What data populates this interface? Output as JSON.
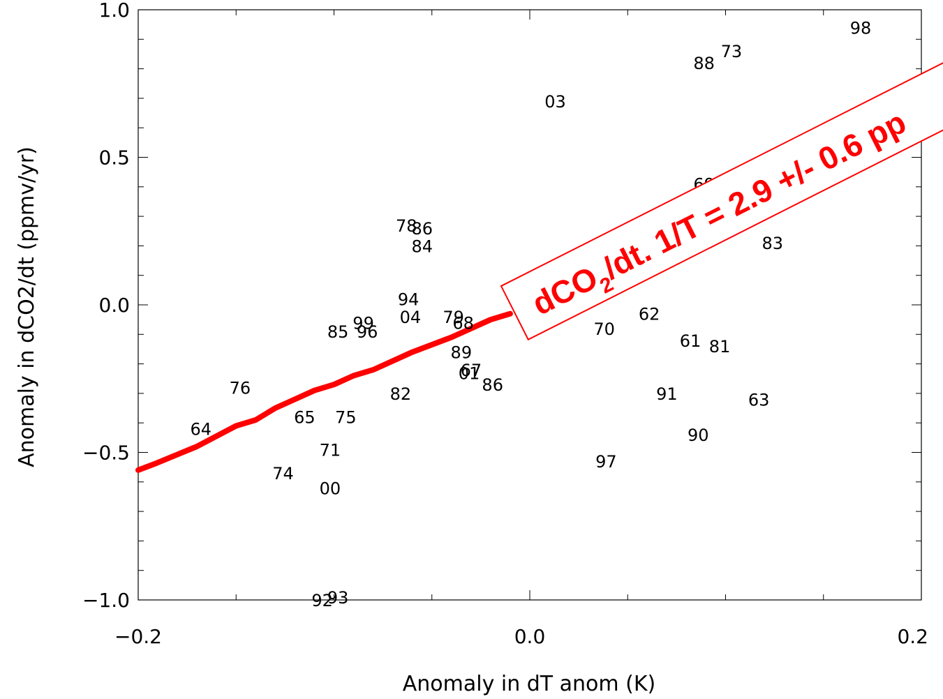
{
  "chart_data": {
    "type": "scatter",
    "xlabel": "Anomaly in dT anom (K)",
    "ylabel": "Anomaly in dCO2/dt (ppmv/yr)",
    "xlim": [
      -0.2,
      0.2
    ],
    "ylim": [
      -1.0,
      1.0
    ],
    "x_ticks": [
      "-0.2",
      "0.0",
      "0.2"
    ],
    "y_ticks": [
      "-1.0",
      "-0.5",
      "0.0",
      "0.5",
      "1.0"
    ],
    "points": [
      {
        "label": "98",
        "x": 0.169,
        "y": 0.94
      },
      {
        "label": "73",
        "x": 0.103,
        "y": 0.86
      },
      {
        "label": "88",
        "x": 0.089,
        "y": 0.82
      },
      {
        "label": "03",
        "x": 0.013,
        "y": 0.69
      },
      {
        "label": "69",
        "x": 0.089,
        "y": 0.41
      },
      {
        "label": "83",
        "x": 0.124,
        "y": 0.21
      },
      {
        "label": "78",
        "x": -0.063,
        "y": 0.27
      },
      {
        "label": "86",
        "x": -0.055,
        "y": 0.26
      },
      {
        "label": "84",
        "x": -0.055,
        "y": 0.2
      },
      {
        "label": "94",
        "x": -0.062,
        "y": 0.02
      },
      {
        "label": "04",
        "x": -0.061,
        "y": -0.04
      },
      {
        "label": "79",
        "x": -0.039,
        "y": -0.04
      },
      {
        "label": "68",
        "x": -0.034,
        "y": -0.06
      },
      {
        "label": "62",
        "x": 0.061,
        "y": -0.03
      },
      {
        "label": "70",
        "x": 0.038,
        "y": -0.08
      },
      {
        "label": "61",
        "x": 0.082,
        "y": -0.12
      },
      {
        "label": "81",
        "x": 0.097,
        "y": -0.14
      },
      {
        "label": "99",
        "x": -0.085,
        "y": -0.06
      },
      {
        "label": "85",
        "x": -0.098,
        "y": -0.09
      },
      {
        "label": "96",
        "x": -0.083,
        "y": -0.09
      },
      {
        "label": "89",
        "x": -0.035,
        "y": -0.16
      },
      {
        "label": "67",
        "x": -0.03,
        "y": -0.22
      },
      {
        "label": "01",
        "x": -0.031,
        "y": -0.23
      },
      {
        "label": "86",
        "x": -0.019,
        "y": -0.27
      },
      {
        "label": "76",
        "x": -0.148,
        "y": -0.28
      },
      {
        "label": "82",
        "x": -0.066,
        "y": -0.3
      },
      {
        "label": "91",
        "x": 0.07,
        "y": -0.3
      },
      {
        "label": "63",
        "x": 0.117,
        "y": -0.32
      },
      {
        "label": "64",
        "x": -0.168,
        "y": -0.42
      },
      {
        "label": "65",
        "x": -0.115,
        "y": -0.38
      },
      {
        "label": "75",
        "x": -0.094,
        "y": -0.38
      },
      {
        "label": "90",
        "x": 0.086,
        "y": -0.44
      },
      {
        "label": "71",
        "x": -0.102,
        "y": -0.49
      },
      {
        "label": "97",
        "x": 0.039,
        "y": -0.53
      },
      {
        "label": "74",
        "x": -0.126,
        "y": -0.57
      },
      {
        "label": "00",
        "x": -0.102,
        "y": -0.62
      },
      {
        "label": "92",
        "x": -0.106,
        "y": -1.0
      },
      {
        "label": "93",
        "x": -0.098,
        "y": -0.99
      }
    ],
    "fit_line": [
      {
        "x": -0.2,
        "y": -0.56
      },
      {
        "x": -0.192,
        "y": -0.54
      },
      {
        "x": -0.17,
        "y": -0.48
      },
      {
        "x": -0.15,
        "y": -0.41
      },
      {
        "x": -0.14,
        "y": -0.39
      },
      {
        "x": -0.13,
        "y": -0.35
      },
      {
        "x": -0.12,
        "y": -0.32
      },
      {
        "x": -0.11,
        "y": -0.29
      },
      {
        "x": -0.1,
        "y": -0.27
      },
      {
        "x": -0.09,
        "y": -0.24
      },
      {
        "x": -0.08,
        "y": -0.22
      },
      {
        "x": -0.06,
        "y": -0.16
      },
      {
        "x": -0.04,
        "y": -0.11
      },
      {
        "x": -0.02,
        "y": -0.05
      },
      {
        "x": -0.01,
        "y": -0.03
      }
    ],
    "fit_line_color": "#ff0000",
    "annotation": {
      "text_main": "dCO",
      "text_sub": "2",
      "text_rest": "/dt. 1/T = 2.9 +/- 0.6 pp",
      "color": "#ff0000"
    }
  }
}
